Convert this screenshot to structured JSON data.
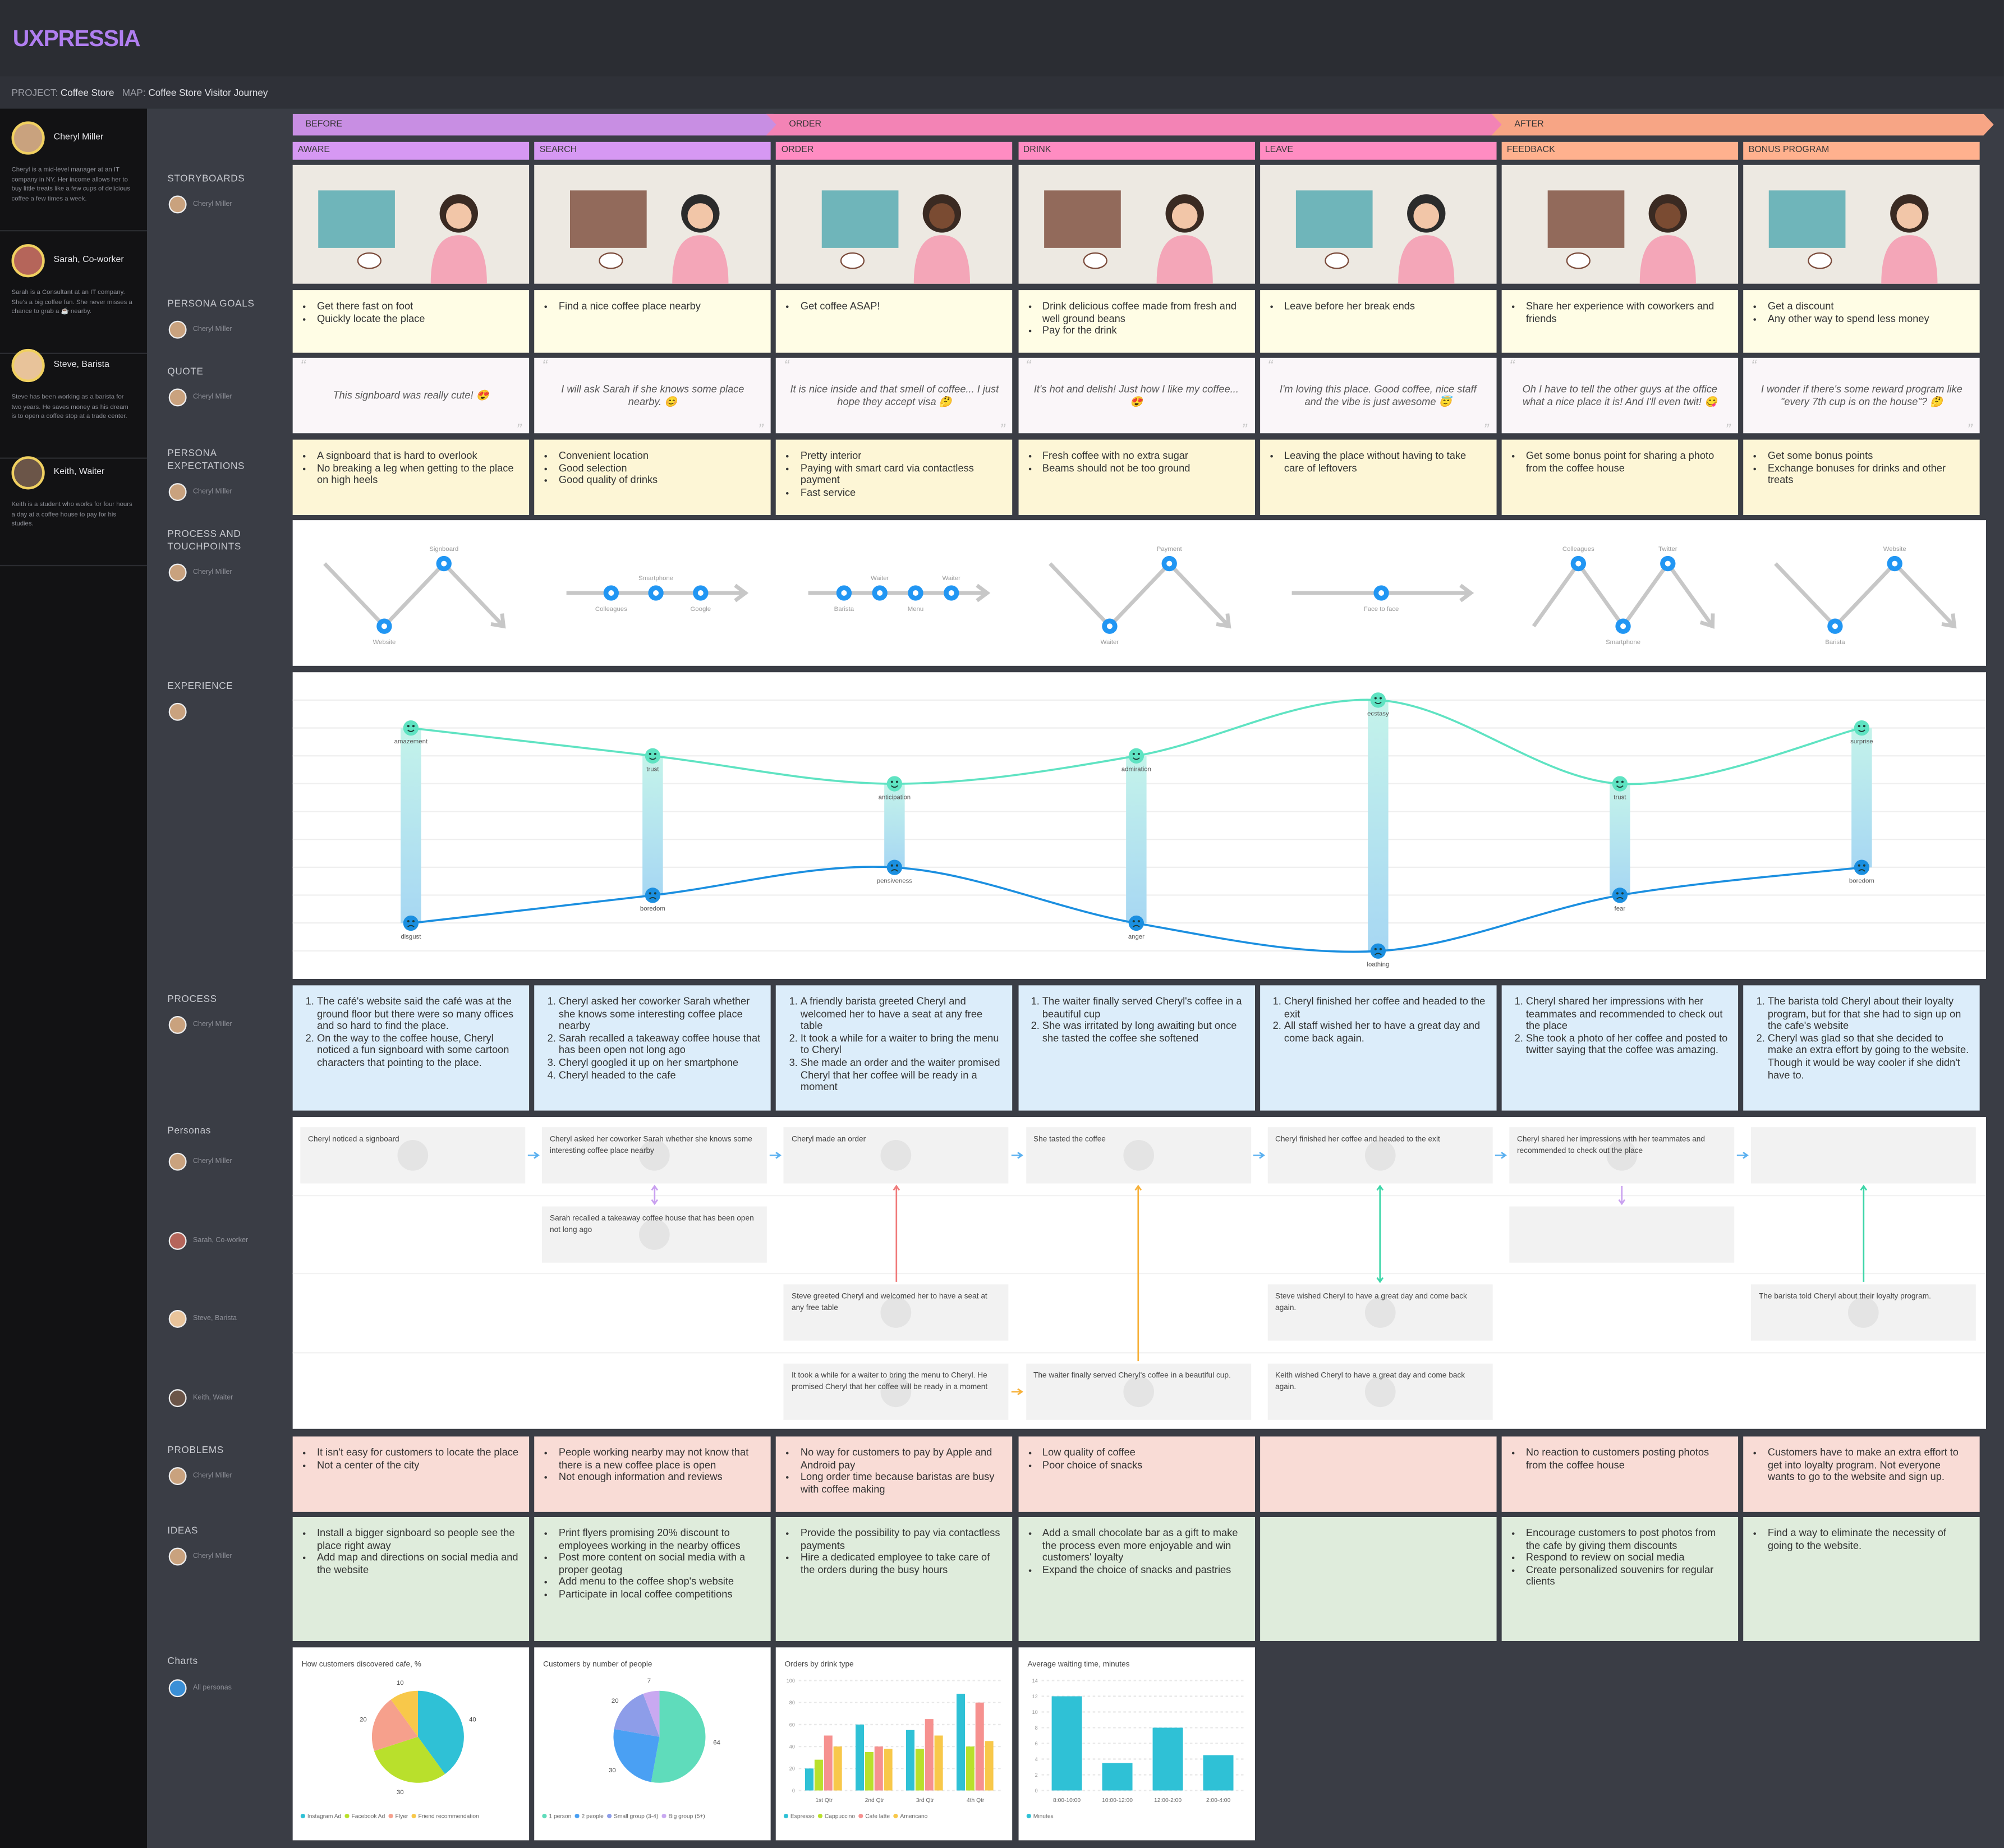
{
  "header": {
    "logo": "UXPRESSIA",
    "project_label": "PROJECT:",
    "project": "Coffee Store",
    "map_label": "MAP:",
    "map": "Coffee Store Visitor Journey"
  },
  "personas": [
    {
      "name": "Cheryl Miller",
      "description": "Cheryl is a mid-level manager at an IT company in NY. Her income allows her to buy little treats like a few cups of delicious coffee a few times a week."
    },
    {
      "name": "Sarah, Co-worker",
      "description": "Sarah is a Consultant at an IT company. She's a big coffee fan. She never misses a chance to grab a ☕ nearby."
    },
    {
      "name": "Steve, Barista",
      "description": "Steve has been working as a barista for two years. He saves money as his dream is to open a coffee stop at a trade center."
    },
    {
      "name": "Keith, Waiter",
      "description": "Keith is a student who works for four hours a day at a coffee house to pay for his studies."
    }
  ],
  "stages": [
    {
      "name": "BEFORE",
      "color": "#c88ee3",
      "steps": [
        "AWARE",
        "SEARCH"
      ]
    },
    {
      "name": "ORDER",
      "color": "#f383b5",
      "steps": [
        "ORDER",
        "DRINK",
        "LEAVE"
      ]
    },
    {
      "name": "AFTER",
      "color": "#f7a585",
      "steps": [
        "FEEDBACK",
        "BONUS PROGRAM"
      ]
    }
  ],
  "sections": {
    "storyboards": {
      "label": "STORYBOARDS"
    },
    "goals": {
      "label": "PERSONA GOALS",
      "items": [
        [
          "Get there fast on foot",
          "Quickly locate the place"
        ],
        [
          "Find a nice coffee place nearby"
        ],
        [
          "Get coffee ASAP!"
        ],
        [
          "Drink delicious coffee made from fresh and well ground beans",
          "Pay for the drink"
        ],
        [
          "Leave before her break ends"
        ],
        [
          "Share her experience with coworkers and friends"
        ],
        [
          "Get a discount",
          "Any other way to spend less money"
        ]
      ]
    },
    "quote": {
      "label": "QUOTE",
      "items": [
        "This signboard was really cute! 😍",
        "I will ask Sarah if she knows some place nearby. 😊",
        "It is nice inside and that smell of coffee... I just hope they accept visa 🤔",
        "It's hot and delish! Just how I like my coffee... 😍",
        "I'm loving this place. Good coffee, nice staff and the vibe is just awesome 😇",
        "Oh I have to tell the other guys at the office what a nice place it is! And I'll even twit! 😋",
        "I wonder if there's some reward program like \"every 7th cup is on the house\"? 🤔"
      ]
    },
    "expectations": {
      "label": "PERSONA EXPECTATIONS",
      "items": [
        [
          "A signboard that is hard to overlook",
          "No breaking a leg when getting to the place on high heels"
        ],
        [
          "Convenient location",
          "Good selection",
          "Good quality of drinks"
        ],
        [
          "Pretty interior",
          "Paying with smart card via contactless payment",
          "Fast service"
        ],
        [
          "Fresh coffee with no extra sugar",
          "Beams should not be too ground"
        ],
        [
          "Leaving the place without having to take care of leftovers"
        ],
        [
          "Get some bonus point for sharing a photo from the coffee house"
        ],
        [
          "Get some bonus points",
          "Exchange bonuses for drinks and other treats"
        ]
      ]
    },
    "touchpoints": {
      "label": "PROCESS AND TOUCHPOINTS",
      "items": [
        [
          {
            "name": "Website",
            "level": "low"
          },
          {
            "name": "Signboard",
            "level": "high"
          }
        ],
        [
          {
            "name": "Colleagues",
            "level": "mid"
          },
          {
            "name": "Smartphone",
            "level": "mid"
          },
          {
            "name": "Google",
            "level": "mid"
          }
        ],
        [
          {
            "name": "Barista",
            "level": "mid"
          },
          {
            "name": "Waiter",
            "level": "mid"
          },
          {
            "name": "Menu",
            "level": "mid"
          },
          {
            "name": "Waiter",
            "level": "mid"
          }
        ],
        [
          {
            "name": "Waiter",
            "level": "low"
          },
          {
            "name": "Payment",
            "level": "high"
          }
        ],
        [
          {
            "name": "Face to face",
            "level": "mid"
          }
        ],
        [
          {
            "name": "Colleagues",
            "level": "high"
          },
          {
            "name": "Smartphone",
            "level": "low"
          },
          {
            "name": "Twitter",
            "level": "high"
          }
        ],
        [
          {
            "name": "Barista",
            "level": "low"
          },
          {
            "name": "Website",
            "level": "high"
          }
        ]
      ]
    },
    "experience": {
      "label": "EXPERIENCE",
      "ylim": [
        -5,
        6
      ],
      "positive": {
        "color": "#5fe3c2",
        "points": [
          {
            "emotion": "amazement",
            "value": 4
          },
          {
            "emotion": "trust",
            "value": 3
          },
          {
            "emotion": "anticipation",
            "value": 2
          },
          {
            "emotion": "admiration",
            "value": 3
          },
          {
            "emotion": "ecstasy",
            "value": 5
          },
          {
            "emotion": "trust",
            "value": 2
          },
          {
            "emotion": "surprise",
            "value": 4
          }
        ]
      },
      "negative": {
        "color": "#1b8fe0",
        "points": [
          {
            "emotion": "disgust",
            "value": -3
          },
          {
            "emotion": "boredom",
            "value": -2
          },
          {
            "emotion": "pensiveness",
            "value": -1
          },
          {
            "emotion": "anger",
            "value": -3
          },
          {
            "emotion": "loathing",
            "value": -4
          },
          {
            "emotion": "fear",
            "value": -2
          },
          {
            "emotion": "boredom",
            "value": -1
          }
        ]
      }
    },
    "process": {
      "label": "PROCESS",
      "items": [
        [
          "The café's website said the café was at the ground floor but there were so many offices and so hard to find the place.",
          "On the way to the coffee house, Cheryl noticed a fun signboard with some cartoon characters that pointing to the place."
        ],
        [
          "Cheryl asked her coworker Sarah whether she knows some interesting coffee place nearby",
          "Sarah recalled a takeaway coffee house that has been open not long ago",
          "Cheryl googled it up on her smartphone",
          "Cheryl headed to the cafe"
        ],
        [
          "A friendly barista greeted Cheryl and welcomed her to have a seat at any free table",
          "It took a while for a waiter to bring the menu to Cheryl",
          "She made an order and the waiter promised Cheryl that her coffee will be ready in a moment"
        ],
        [
          "The waiter finally served Cheryl's coffee in a beautiful cup",
          "She was irritated by long awaiting but once she tasted the coffee she softened"
        ],
        [
          "Cheryl finished her coffee and headed to the exit",
          "All staff wished her to have a great day and come back again."
        ],
        [
          "Cheryl shared her impressions with her teammates and recommended to check out the place",
          "She took a photo of her coffee and posted to twitter saying that the coffee was amazing."
        ],
        [
          "The barista told Cheryl about their loyalty program, but for that she had to sign up on the cafe's website",
          "Cheryl was glad so that she decided to make an extra effort by going to the website. Though it would be way cooler if she didn't have to."
        ]
      ]
    },
    "personas": {
      "label": "Personas",
      "lanes": [
        [
          "Cheryl noticed a signboard",
          "Cheryl asked her coworker Sarah whether she knows some interesting coffee place nearby",
          "Cheryl made an order",
          "She tasted the coffee",
          "Cheryl finished her coffee and headed to the exit",
          "Cheryl shared her impressions with her teammates and recommended to check out the place",
          null
        ],
        [
          null,
          "Sarah recalled a takeaway coffee house that has been open not long ago",
          null,
          null,
          null,
          null,
          null
        ],
        [
          null,
          null,
          "Steve greeted Cheryl and welcomed her to have a seat at any free table",
          null,
          "Steve wished Cheryl to have a great day and come back again.",
          null,
          "The barista told Cheryl about their loyalty program."
        ],
        [
          null,
          null,
          "It took a while for a waiter to bring the menu to Cheryl. He promised Cheryl that her coffee will be ready in a moment",
          "The waiter finally served Cheryl's coffee in a beautiful cup.",
          "Keith wished Cheryl to have a great day and come back again.",
          null,
          null
        ]
      ]
    },
    "problems": {
      "label": "PROBLEMS",
      "items": [
        [
          "It isn't easy for customers to locate the place",
          "Not a center of the city"
        ],
        [
          "People working nearby may not know that there is a new coffee place is open",
          "Not enough information and reviews"
        ],
        [
          "No way for customers to pay by Apple and Android pay",
          "Long order time because baristas are busy with coffee making"
        ],
        [
          "Low quality of coffee",
          "Poor choice of snacks"
        ],
        [],
        [
          "No reaction to customers posting photos from the coffee house"
        ],
        [
          "Customers have to make an extra effort to get into loyalty program. Not everyone wants to go to the website and sign up."
        ]
      ]
    },
    "ideas": {
      "label": "IDEAS",
      "items": [
        [
          "Install a bigger signboard so people see the place right away",
          "Add map and directions on social media and the website"
        ],
        [
          "Print flyers promising 20% discount to employees working in the nearby offices",
          "Post more content on social media with a proper geotag",
          "Add menu to the coffee shop's website",
          "Participate in local coffee competitions"
        ],
        [
          "Provide the possibility to pay via contactless payments",
          "Hire a dedicated employee to take care of the orders during the busy hours"
        ],
        [
          "Add a small chocolate bar as a gift to make the process even more enjoyable and win customers' loyalty",
          "Expand the choice of snacks and pastries"
        ],
        [],
        [
          "Encourage customers to post photos from the cafe by giving them discounts",
          "Respond to review on social media",
          "Create personalized souvenirs for regular clients"
        ],
        [
          "Find a way to eliminate the necessity of going to the website."
        ]
      ]
    },
    "charts": {
      "label": "Charts",
      "persona": "All personas",
      "items": [
        {
          "type": "pie",
          "title": "How customers discovered cafe, %",
          "categories": [
            "Instagram Ad",
            "Facebook Ad",
            "Flyer",
            "Friend recommendation"
          ],
          "values": [
            40,
            30,
            20,
            10
          ],
          "colors": [
            "#2fc1d6",
            "#b9e02c",
            "#f6a08c",
            "#f8c84a"
          ]
        },
        {
          "type": "pie",
          "title": "Customers by number of people",
          "categories": [
            "1 person",
            "2 people",
            "Small group (3-4)",
            "Big group (5+)"
          ],
          "values": [
            64,
            30,
            20,
            7
          ],
          "colors": [
            "#5fdcbb",
            "#4aa0f3",
            "#8d9de9",
            "#c9a9f1"
          ]
        },
        {
          "type": "bar",
          "title": "Orders by drink type",
          "categories": [
            "1st Qtr",
            "2nd Qtr",
            "3rd Qtr",
            "4th Qtr"
          ],
          "ylim": [
            0,
            100
          ],
          "yticks": [
            0,
            20,
            40,
            60,
            80,
            100
          ],
          "grid": true,
          "series": [
            {
              "name": "Espresso",
              "color": "#2fc1d6",
              "values": [
                20,
                60,
                55,
                88
              ]
            },
            {
              "name": "Cappuccino",
              "color": "#b9e02c",
              "values": [
                28,
                35,
                38,
                40
              ]
            },
            {
              "name": "Cafe latte",
              "color": "#f6918f",
              "values": [
                50,
                40,
                65,
                80
              ]
            },
            {
              "name": "Americano",
              "color": "#f8c84a",
              "values": [
                40,
                38,
                50,
                45
              ]
            }
          ]
        },
        {
          "type": "bar",
          "title": "Average waiting time, minutes",
          "categories": [
            "8:00-10:00",
            "10:00-12:00",
            "12:00-2:00",
            "2:00-4:00"
          ],
          "ylim": [
            0,
            14
          ],
          "yticks": [
            0,
            2,
            4,
            6,
            8,
            10,
            12,
            14
          ],
          "grid": true,
          "series": [
            {
              "name": "Minutes",
              "color": "#2fc1d6",
              "values": [
                12,
                3.5,
                8,
                4.5
              ]
            }
          ]
        }
      ]
    }
  }
}
